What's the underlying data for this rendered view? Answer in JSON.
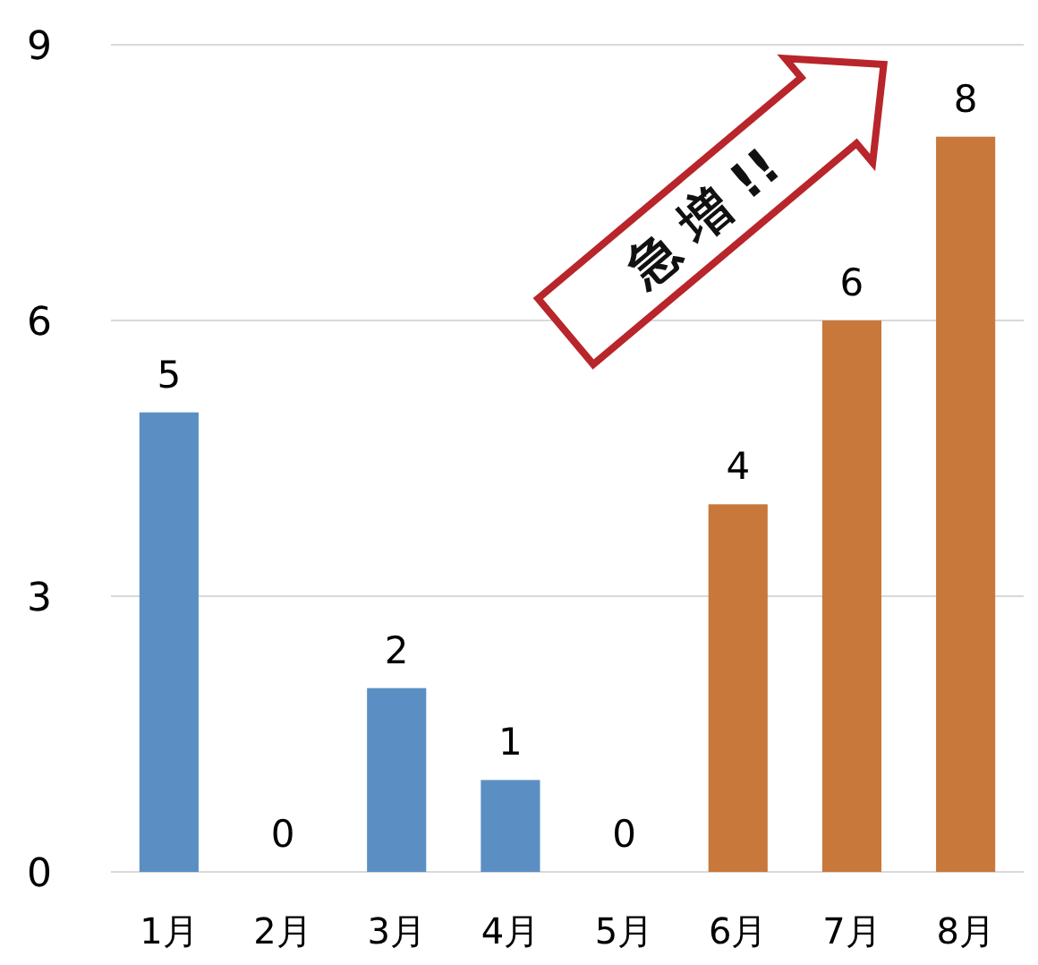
{
  "chart_data": {
    "type": "bar",
    "categories": [
      "1月",
      "2月",
      "3月",
      "4月",
      "5月",
      "6月",
      "7月",
      "8月"
    ],
    "values": [
      5,
      0,
      2,
      1,
      0,
      4,
      6,
      8
    ],
    "colors": [
      "#5b8fc4",
      "#5b8fc4",
      "#5b8fc4",
      "#5b8fc4",
      "#5b8fc4",
      "#c8783a",
      "#c8783a",
      "#c8783a"
    ],
    "ylim": [
      0,
      9
    ],
    "yticks": [
      0,
      3,
      6,
      9
    ],
    "grid": "y",
    "data_labels": true,
    "annotations": [
      "急 増 !!"
    ]
  }
}
